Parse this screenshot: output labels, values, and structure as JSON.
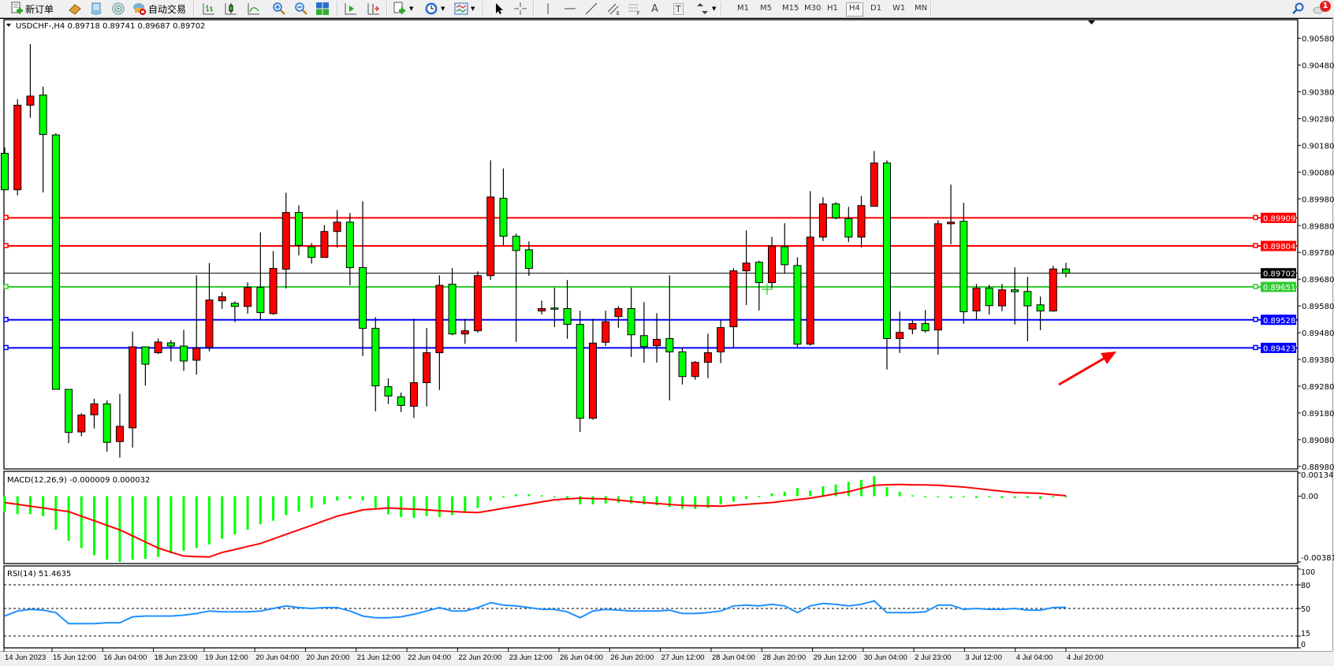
{
  "toolbar": {
    "new_order_label": "新订单",
    "auto_trading_label": "自动交易",
    "icons": [
      "new-order-icon",
      "navigator-icon",
      "market-watch-icon",
      "signals-icon",
      "auto-trading-icon",
      "bar-chart-icon",
      "candlestick-icon",
      "line-chart-icon",
      "zoom-in-icon",
      "zoom-out-icon",
      "tile-windows-icon",
      "auto-scroll-icon",
      "chart-shift-icon",
      "templates-icon",
      "periods-icon",
      "indicators-icon",
      "cursor-icon",
      "crosshair-icon",
      "vertical-line-icon",
      "horizontal-line-icon",
      "trendline-icon",
      "equidistant-channel-icon",
      "fibonacci-icon",
      "text-icon",
      "text-label-icon",
      "arrows-icon",
      "search-icon",
      "notifications-icon"
    ],
    "timeframes": [
      "M1",
      "M5",
      "M15",
      "M30",
      "H1",
      "H4",
      "D1",
      "W1",
      "MN"
    ],
    "active_timeframe": "H4",
    "text_tool": "A",
    "label_tool": "T",
    "notification_count": "1"
  },
  "chart": {
    "header": "USDCHF-,H4  0.89718 0.89741 0.89687 0.89702",
    "price_ticks": [
      "0.90580",
      "0.90480",
      "0.90380",
      "0.90280",
      "0.90180",
      "0.90080",
      "0.89980",
      "0.89880",
      "0.89780",
      "0.89680",
      "0.89580",
      "0.89480",
      "0.89380",
      "0.89280",
      "0.89180",
      "0.89080",
      "0.88980"
    ],
    "current_price": "0.89702",
    "levels": [
      {
        "price": "0.89909",
        "color": "#ff0000"
      },
      {
        "price": "0.89804",
        "color": "#ff0000"
      },
      {
        "price": "0.89651",
        "color": "#32cd32"
      },
      {
        "price": "0.89528",
        "color": "#0000ff"
      },
      {
        "price": "0.89423",
        "color": "#0000ff"
      }
    ],
    "macd_label": "MACD(12,26,9) -0.000009 0.000032",
    "macd_ticks": [
      "0.001349",
      "0.00",
      "-0.00381"
    ],
    "rsi_label": "RSI(14) 51.4635",
    "rsi_ticks": [
      "100",
      "80",
      "50",
      "15",
      "0"
    ],
    "date_labels": [
      "14 Jun 2023",
      "15 Jun 12:00",
      "16 Jun 04:00",
      "18 Jun 23:00",
      "19 Jun 12:00",
      "20 Jun 04:00",
      "20 Jun 20:00",
      "21 Jun 12:00",
      "22 Jun 04:00",
      "22 Jun 20:00",
      "23 Jun 12:00",
      "26 Jun 04:00",
      "26 Jun 20:00",
      "27 Jun 12:00",
      "28 Jun 04:00",
      "28 Jun 20:00",
      "29 Jun 12:00",
      "30 Jun 04:00",
      "2 Jul 23:00",
      "3 Jul 12:00",
      "4 Jul 04:00",
      "4 Jul 20:00"
    ],
    "colors": {
      "bull": "#ff0000",
      "bear": "#00ff00",
      "macd_hist": "#00ff00",
      "macd_signal": "#ff0000",
      "rsi": "#1e90ff",
      "arrow": "#ff0000"
    }
  },
  "chart_data": {
    "type": "candlestick",
    "symbol": "USDCHF-",
    "timeframe": "H4",
    "ylim": [
      0.8898,
      0.9058
    ],
    "candles_ohlc": [
      [
        0.9015,
        0.90172,
        0.90014,
        0.90014
      ],
      [
        0.90014,
        0.90352,
        0.89993,
        0.9033
      ],
      [
        0.9033,
        0.90558,
        0.90283,
        0.90364
      ],
      [
        0.90368,
        0.90399,
        0.90004,
        0.90221
      ],
      [
        0.90219,
        0.90225,
        0.89268,
        0.89268
      ],
      [
        0.89268,
        0.89268,
        0.89067,
        0.89107
      ],
      [
        0.89109,
        0.89179,
        0.89093,
        0.89172
      ],
      [
        0.89173,
        0.89233,
        0.89122,
        0.89214
      ],
      [
        0.89214,
        0.89227,
        0.89035,
        0.8907
      ],
      [
        0.89073,
        0.89251,
        0.89013,
        0.8913
      ],
      [
        0.89124,
        0.89484,
        0.89051,
        0.89427
      ],
      [
        0.89427,
        0.89427,
        0.89282,
        0.89362
      ],
      [
        0.89405,
        0.89458,
        0.894,
        0.89445
      ],
      [
        0.89442,
        0.89452,
        0.89373,
        0.8943
      ],
      [
        0.8943,
        0.8949,
        0.89337,
        0.89374
      ],
      [
        0.89377,
        0.89694,
        0.89323,
        0.89422
      ],
      [
        0.89425,
        0.8974,
        0.8941,
        0.89602
      ],
      [
        0.89599,
        0.89632,
        0.89569,
        0.89614
      ],
      [
        0.8959,
        0.89597,
        0.89519,
        0.89578
      ],
      [
        0.89578,
        0.89668,
        0.89551,
        0.89649
      ],
      [
        0.89649,
        0.89855,
        0.89528,
        0.89555
      ],
      [
        0.89551,
        0.89785,
        0.89547,
        0.8972
      ],
      [
        0.89717,
        0.90003,
        0.89645,
        0.89929
      ],
      [
        0.89929,
        0.89956,
        0.89769,
        0.89806
      ],
      [
        0.89801,
        0.89815,
        0.89738,
        0.89761
      ],
      [
        0.89761,
        0.89882,
        0.89761,
        0.89858
      ],
      [
        0.89858,
        0.89938,
        0.89798,
        0.89893
      ],
      [
        0.89893,
        0.89927,
        0.89657,
        0.89723
      ],
      [
        0.89723,
        0.89971,
        0.89392,
        0.89496
      ],
      [
        0.89496,
        0.89538,
        0.89186,
        0.89281
      ],
      [
        0.89278,
        0.89309,
        0.89213,
        0.89243
      ],
      [
        0.8924,
        0.89256,
        0.89183,
        0.89208
      ],
      [
        0.89205,
        0.89532,
        0.89161,
        0.89293
      ],
      [
        0.89293,
        0.89497,
        0.89204,
        0.89405
      ],
      [
        0.89405,
        0.89694,
        0.89266,
        0.89657
      ],
      [
        0.89661,
        0.89721,
        0.8947,
        0.89475
      ],
      [
        0.89475,
        0.89532,
        0.89438,
        0.89487
      ],
      [
        0.89487,
        0.89709,
        0.8948,
        0.89693
      ],
      [
        0.89693,
        0.90124,
        0.89677,
        0.89987
      ],
      [
        0.89982,
        0.90094,
        0.89806,
        0.8984
      ],
      [
        0.8984,
        0.8985,
        0.89445,
        0.89787
      ],
      [
        0.8979,
        0.89821,
        0.89692,
        0.8972
      ],
      [
        0.89561,
        0.896,
        0.89548,
        0.8957
      ],
      [
        0.89572,
        0.89648,
        0.89501,
        0.89571
      ],
      [
        0.8957,
        0.89677,
        0.89457,
        0.89511
      ],
      [
        0.89511,
        0.89562,
        0.89109,
        0.8916
      ],
      [
        0.8916,
        0.89532,
        0.89155,
        0.89441
      ],
      [
        0.89444,
        0.89562,
        0.8943,
        0.89521
      ],
      [
        0.8954,
        0.89579,
        0.89498,
        0.8957
      ],
      [
        0.8957,
        0.89648,
        0.89389,
        0.89472
      ],
      [
        0.89469,
        0.89594,
        0.89368,
        0.89428
      ],
      [
        0.89431,
        0.89553,
        0.89368,
        0.89455
      ],
      [
        0.89458,
        0.89694,
        0.89227,
        0.89408
      ],
      [
        0.89408,
        0.89423,
        0.89286,
        0.89316
      ],
      [
        0.89316,
        0.89374,
        0.89304,
        0.89369
      ],
      [
        0.89369,
        0.89476,
        0.8931,
        0.89405
      ],
      [
        0.89408,
        0.89526,
        0.89366,
        0.89499
      ],
      [
        0.89502,
        0.89721,
        0.89425,
        0.89711
      ],
      [
        0.89711,
        0.89862,
        0.89583,
        0.8974
      ],
      [
        0.89743,
        0.89749,
        0.89563,
        0.89667
      ],
      [
        0.89667,
        0.89838,
        0.89646,
        0.89804
      ],
      [
        0.89801,
        0.89889,
        0.897,
        0.89734
      ],
      [
        0.89731,
        0.89762,
        0.89425,
        0.89437
      ],
      [
        0.89437,
        0.90009,
        0.89431,
        0.89837
      ],
      [
        0.89837,
        0.89986,
        0.89822,
        0.89961
      ],
      [
        0.89961,
        0.89968,
        0.89904,
        0.89909
      ],
      [
        0.89906,
        0.8995,
        0.89818,
        0.89837
      ],
      [
        0.89837,
        0.89991,
        0.89798,
        0.89955
      ],
      [
        0.89952,
        0.90159,
        0.89952,
        0.90114
      ],
      [
        0.90114,
        0.90124,
        0.89342,
        0.89458
      ],
      [
        0.89458,
        0.89559,
        0.89404,
        0.89481
      ],
      [
        0.89493,
        0.89525,
        0.89474,
        0.89514
      ],
      [
        0.89514,
        0.89565,
        0.8948,
        0.89487
      ],
      [
        0.8949,
        0.899,
        0.89398,
        0.89887
      ],
      [
        0.89887,
        0.90033,
        0.8981,
        0.89893
      ],
      [
        0.89896,
        0.89965,
        0.89513,
        0.89558
      ],
      [
        0.89561,
        0.89662,
        0.89528,
        0.89646
      ],
      [
        0.89646,
        0.89659,
        0.89548,
        0.89581
      ],
      [
        0.8958,
        0.89662,
        0.8956,
        0.8964
      ],
      [
        0.8964,
        0.89724,
        0.8951,
        0.89633
      ],
      [
        0.89634,
        0.89688,
        0.89448,
        0.8958
      ],
      [
        0.89584,
        0.89615,
        0.89489,
        0.89561
      ],
      [
        0.89561,
        0.8973,
        0.89558,
        0.89718
      ],
      [
        0.89718,
        0.89741,
        0.89687,
        0.89702
      ]
    ],
    "macd": {
      "ylim": [
        -0.00381,
        0.001349
      ],
      "histogram": [
        -0.00089,
        -0.00105,
        -0.00105,
        -0.00116,
        -0.00195,
        -0.00258,
        -0.003,
        -0.00342,
        -0.00368,
        -0.00381,
        -0.00368,
        -0.00363,
        -0.00352,
        -0.00331,
        -0.00316,
        -0.003,
        -0.00279,
        -0.00247,
        -0.00221,
        -0.00195,
        -0.00163,
        -0.00142,
        -0.0011,
        -0.00089,
        -0.00068,
        -0.00047,
        -0.00026,
        -0.00016,
        -0.00026,
        -0.00068,
        -0.00105,
        -0.00121,
        -0.00126,
        -0.00116,
        -0.00121,
        -0.0011,
        -0.00095,
        -0.00068,
        -0.00026,
        -2e-05,
        0.00011,
        0.00011,
        5e-05,
        -5e-05,
        -0.00021,
        -0.00047,
        -0.00047,
        -0.00042,
        -0.00037,
        -0.00042,
        -0.00047,
        -0.00053,
        -0.00063,
        -0.00074,
        -0.00074,
        -0.00068,
        -0.00047,
        -0.00032,
        -0.00016,
        -2e-05,
        0.00016,
        0.00026,
        0.00047,
        0.00032,
        0.00058,
        0.00068,
        0.00084,
        0.00095,
        0.00116,
        0.00053,
        0.00026,
        5e-05,
        0.0,
        -5e-05,
        -0.00011,
        -5e-05,
        -0.00011,
        -5e-05,
        -0.00011,
        -0.00011,
        -0.00011,
        -0.00016,
        -5e-05,
        -9e-06
      ],
      "signal": [
        -0.00037,
        -0.00047,
        -0.00058,
        -0.00068,
        -0.00079,
        -0.00089,
        -0.00116,
        -0.00142,
        -0.00169,
        -0.00195,
        -0.0023,
        -0.00265,
        -0.003,
        -0.00324,
        -0.00347,
        -0.0035,
        -0.00352,
        -0.00326,
        -0.00309,
        -0.00291,
        -0.00274,
        -0.00248,
        -0.00221,
        -0.00195,
        -0.00169,
        -0.00142,
        -0.00116,
        -0.00098,
        -0.00079,
        -0.00074,
        -0.00068,
        -0.00072,
        -0.00075,
        -0.00079,
        -0.00084,
        -0.00089,
        -0.00092,
        -0.00095,
        -0.00083,
        -0.0007,
        -0.00058,
        -0.00046,
        -0.00033,
        -0.00021,
        -0.00016,
        -0.00011,
        -0.00014,
        -0.00016,
        -0.00023,
        -0.0003,
        -0.00037,
        -0.00042,
        -0.00048,
        -0.00053,
        -0.00055,
        -0.00056,
        -0.00058,
        -0.00053,
        -0.00047,
        -0.00042,
        -0.00037,
        -0.00028,
        -0.0002,
        -0.00011,
        1e-05,
        0.00014,
        0.00026,
        0.00045,
        0.00063,
        0.00066,
        0.00068,
        0.00066,
        0.00065,
        0.00063,
        0.00058,
        0.00053,
        0.00045,
        0.00037,
        0.00029,
        0.00021,
        0.00019,
        0.00016,
        9e-05,
        3.2e-05
      ]
    },
    "rsi": {
      "ylim": [
        0,
        100
      ],
      "levels": [
        80,
        50,
        15
      ],
      "values": [
        40.4,
        46.8,
        48.9,
        47.9,
        44.7,
        30.8,
        30.8,
        30.8,
        31.9,
        31.9,
        39.4,
        40.4,
        40.4,
        40.4,
        41.5,
        43.6,
        46.8,
        45.7,
        45.7,
        45.7,
        46.8,
        50.0,
        53.2,
        51.1,
        50.0,
        51.1,
        51.1,
        46.8,
        40.4,
        38.3,
        38.3,
        39.4,
        42.6,
        46.8,
        51.1,
        46.8,
        46.8,
        51.1,
        57.4,
        54.3,
        53.2,
        51.1,
        48.9,
        48.9,
        45.7,
        38.3,
        46.8,
        48.9,
        47.9,
        46.8,
        46.8,
        46.8,
        47.9,
        43.6,
        43.6,
        44.7,
        46.8,
        53.2,
        54.3,
        53.2,
        55.3,
        53.2,
        44.7,
        53.2,
        56.4,
        55.3,
        53.2,
        55.3,
        59.6,
        44.7,
        44.7,
        44.7,
        45.7,
        54.3,
        54.3,
        48.9,
        50.0,
        48.9,
        48.9,
        50.0,
        47.9,
        47.9,
        51.1,
        51.4635
      ]
    }
  }
}
